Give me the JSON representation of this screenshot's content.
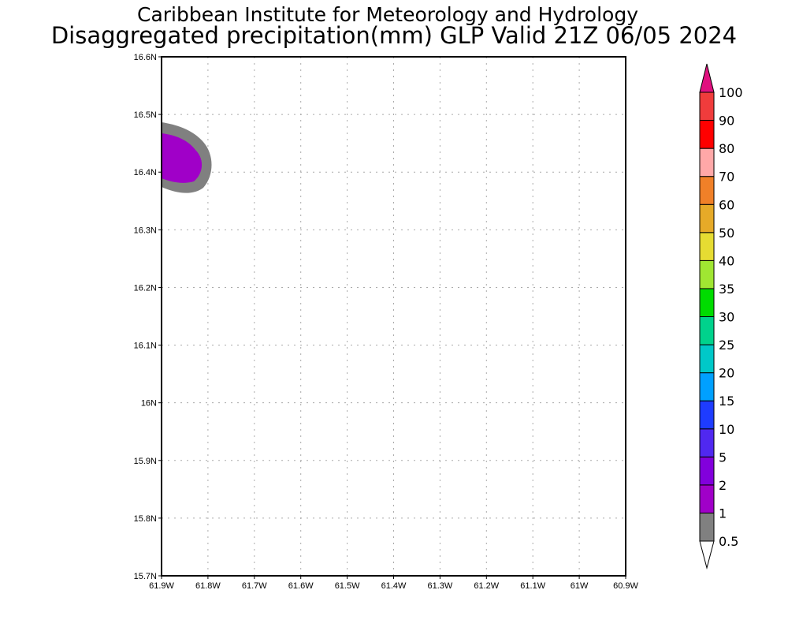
{
  "header": {
    "title": "Caribbean Institute for Meteorology and Hydrology",
    "subtitle": "Disaggregated precipitation(mm) GLP Valid 21Z 06/05 2024"
  },
  "chart_data": {
    "type": "heatmap",
    "title": "Disaggregated precipitation(mm) GLP Valid 21Z 06/05 2024",
    "xlim": [
      -61.9,
      -60.9
    ],
    "ylim": [
      15.7,
      16.6
    ],
    "x_ticks": [
      -61.9,
      -61.8,
      -61.7,
      -61.6,
      -61.5,
      -61.4,
      -61.3,
      -61.2,
      -61.1,
      -61.0,
      -60.9
    ],
    "x_tick_labels": [
      "61.9W",
      "61.8W",
      "61.7W",
      "61.6W",
      "61.5W",
      "61.4W",
      "61.3W",
      "61.2W",
      "61.1W",
      "61W",
      "60.9W"
    ],
    "y_ticks": [
      15.7,
      15.8,
      15.9,
      16.0,
      16.1,
      16.2,
      16.3,
      16.4,
      16.5,
      16.6
    ],
    "y_tick_labels": [
      "15.7N",
      "15.8N",
      "15.9N",
      "16N",
      "16.1N",
      "16.2N",
      "16.3N",
      "16.4N",
      "16.5N",
      "16.6N"
    ],
    "grid": true,
    "features": [
      {
        "name": "precip-0.5-1mm",
        "level": "0.5-1",
        "approx_lon_range": [
          -61.9,
          -61.79
        ],
        "approx_lat_range": [
          16.36,
          16.48
        ]
      },
      {
        "name": "precip-1-2mm",
        "level": "1-2",
        "approx_lon_range": [
          -61.9,
          -61.81
        ],
        "approx_lat_range": [
          16.38,
          16.46
        ]
      }
    ],
    "colorbar": {
      "levels": [
        "0.5",
        "1",
        "2",
        "5",
        "10",
        "15",
        "20",
        "25",
        "30",
        "35",
        "40",
        "50",
        "60",
        "70",
        "80",
        "90",
        "100"
      ],
      "colors": [
        "#808080",
        "#a000c8",
        "#8200dc",
        "#5028f0",
        "#1e3cff",
        "#00a0ff",
        "#00c8c8",
        "#00d28c",
        "#00dc00",
        "#a0e632",
        "#e6dc32",
        "#e6aa28",
        "#f08028",
        "#ffa8a8",
        "#ff0000",
        "#f03c3c"
      ],
      "over_color": "#e0107f",
      "under_color": "#ffffff"
    }
  }
}
